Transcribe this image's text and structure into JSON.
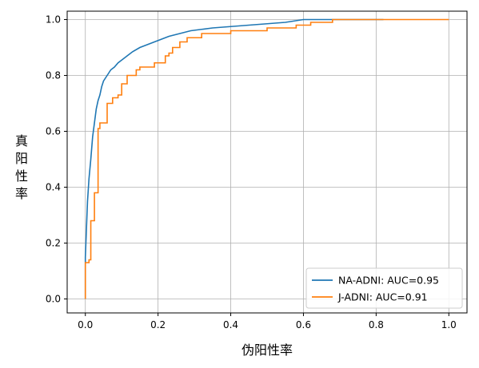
{
  "chart_data": {
    "type": "line",
    "title": "",
    "xlabel": "伪阳性率",
    "ylabel": "真阳性率",
    "xlim": [
      -0.05,
      1.05
    ],
    "ylim": [
      -0.05,
      1.03
    ],
    "xticks": [
      "0.0",
      "0.2",
      "0.4",
      "0.6",
      "0.8",
      "1.0"
    ],
    "yticks": [
      "0.0",
      "0.2",
      "0.4",
      "0.6",
      "0.8",
      "1.0"
    ],
    "grid": true,
    "legend_position": "bottom-right",
    "series": [
      {
        "name": "NA-ADNI: AUC=0.95",
        "color": "#1f77b4",
        "points": [
          [
            0,
            0
          ],
          [
            0,
            0.15
          ],
          [
            0.003,
            0.25
          ],
          [
            0.006,
            0.35
          ],
          [
            0.01,
            0.43
          ],
          [
            0.015,
            0.5
          ],
          [
            0.02,
            0.58
          ],
          [
            0.025,
            0.63
          ],
          [
            0.03,
            0.68
          ],
          [
            0.035,
            0.71
          ],
          [
            0.04,
            0.73
          ],
          [
            0.045,
            0.76
          ],
          [
            0.05,
            0.78
          ],
          [
            0.06,
            0.8
          ],
          [
            0.07,
            0.82
          ],
          [
            0.08,
            0.83
          ],
          [
            0.09,
            0.845
          ],
          [
            0.1,
            0.855
          ],
          [
            0.11,
            0.865
          ],
          [
            0.12,
            0.875
          ],
          [
            0.13,
            0.885
          ],
          [
            0.15,
            0.9
          ],
          [
            0.17,
            0.91
          ],
          [
            0.19,
            0.92
          ],
          [
            0.21,
            0.93
          ],
          [
            0.23,
            0.94
          ],
          [
            0.26,
            0.95
          ],
          [
            0.29,
            0.96
          ],
          [
            0.32,
            0.965
          ],
          [
            0.35,
            0.97
          ],
          [
            0.4,
            0.975
          ],
          [
            0.45,
            0.98
          ],
          [
            0.5,
            0.985
          ],
          [
            0.55,
            0.99
          ],
          [
            0.6,
            1.0
          ],
          [
            0.82,
            1.0
          ]
        ]
      },
      {
        "name": "J-ADNI: AUC=0.91",
        "color": "#ff7f0e",
        "points": [
          [
            0,
            0
          ],
          [
            0,
            0.13
          ],
          [
            0.01,
            0.13
          ],
          [
            0.01,
            0.14
          ],
          [
            0.015,
            0.14
          ],
          [
            0.015,
            0.28
          ],
          [
            0.025,
            0.28
          ],
          [
            0.025,
            0.38
          ],
          [
            0.035,
            0.38
          ],
          [
            0.035,
            0.61
          ],
          [
            0.04,
            0.61
          ],
          [
            0.04,
            0.63
          ],
          [
            0.06,
            0.63
          ],
          [
            0.06,
            0.7
          ],
          [
            0.075,
            0.7
          ],
          [
            0.075,
            0.72
          ],
          [
            0.09,
            0.72
          ],
          [
            0.09,
            0.73
          ],
          [
            0.1,
            0.73
          ],
          [
            0.1,
            0.77
          ],
          [
            0.115,
            0.77
          ],
          [
            0.115,
            0.8
          ],
          [
            0.14,
            0.8
          ],
          [
            0.14,
            0.82
          ],
          [
            0.15,
            0.82
          ],
          [
            0.15,
            0.83
          ],
          [
            0.19,
            0.83
          ],
          [
            0.19,
            0.845
          ],
          [
            0.22,
            0.845
          ],
          [
            0.22,
            0.87
          ],
          [
            0.23,
            0.87
          ],
          [
            0.23,
            0.88
          ],
          [
            0.24,
            0.88
          ],
          [
            0.24,
            0.9
          ],
          [
            0.26,
            0.9
          ],
          [
            0.26,
            0.92
          ],
          [
            0.28,
            0.92
          ],
          [
            0.28,
            0.935
          ],
          [
            0.32,
            0.935
          ],
          [
            0.32,
            0.95
          ],
          [
            0.4,
            0.95
          ],
          [
            0.4,
            0.96
          ],
          [
            0.5,
            0.96
          ],
          [
            0.5,
            0.97
          ],
          [
            0.58,
            0.97
          ],
          [
            0.58,
            0.98
          ],
          [
            0.62,
            0.98
          ],
          [
            0.62,
            0.99
          ],
          [
            0.68,
            0.99
          ],
          [
            0.68,
            1.0
          ],
          [
            1.0,
            1.0
          ]
        ]
      }
    ]
  }
}
